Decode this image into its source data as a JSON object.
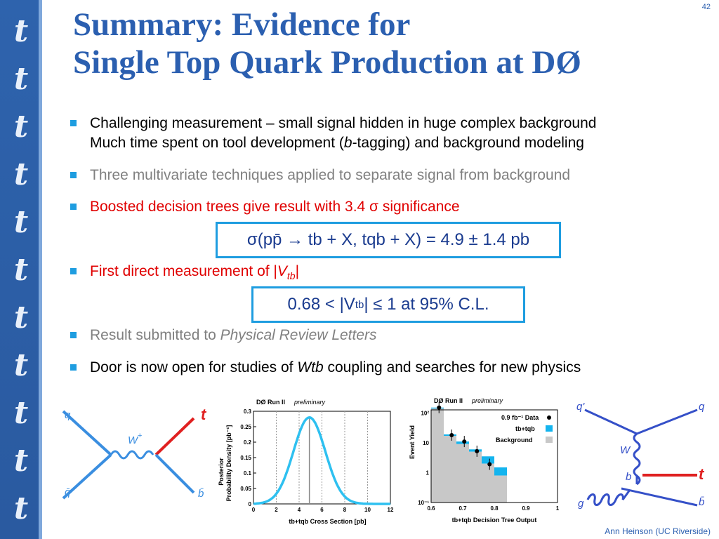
{
  "slide": {
    "page_number": "42",
    "title_line1": "Summary:   Evidence for",
    "title_line2": "Single Top Quark Production at DØ",
    "sidebar_letter": "t",
    "footer": "Ann Heinson   (UC Riverside)"
  },
  "bullets": {
    "b1_line1": "Challenging measurement – small signal hidden in huge complex background",
    "b1_line2_pre": "Much time spent on tool development (",
    "b1_line2_italic": "b",
    "b1_line2_post": "-tagging) and background modeling",
    "b2": "Three multivariate techniques applied to separate signal from background",
    "b3": "Boosted decision trees give result with 3.4 σ significance",
    "b4_pre": "First direct measurement of |",
    "b4_V": "V",
    "b4_sub": "tb",
    "b4_post": "|",
    "b5_pre": "Result submitted to ",
    "b5_italic": "Physical Review Letters",
    "b6_pre": "Door is now open for studies of ",
    "b6_italic": "Wtb",
    "b6_post": " coupling and searches for new physics"
  },
  "formulas": {
    "f1": "σ(pp̄ → tb + X, tqb + X)  =  4.9 ± 1.4 pb",
    "f2_pre": "0.68 < |V",
    "f2_sub": "tb",
    "f2_post": " | ≤ 1    at 95% C.L."
  },
  "feyn1": {
    "q": "q",
    "qbar": "q̄'",
    "w": "W",
    "wsup": "+",
    "t": "t",
    "b": "b̄"
  },
  "feyn2": {
    "qprime": "q'",
    "q": "q",
    "w": "W",
    "b": "b",
    "t": "t",
    "g": "g",
    "bbar": "b̄"
  },
  "chart_data": [
    {
      "type": "line",
      "header": "DØ Run II",
      "header_italic": "preliminary",
      "xlabel": "tb+tqb Cross Section  [pb]",
      "ylabel_line1": "Posterior",
      "ylabel_line2": "Probability Density  [pb⁻¹]",
      "xlim": [
        0,
        12
      ],
      "ylim": [
        0,
        0.3
      ],
      "x_ticks": [
        "0",
        "2",
        "4",
        "6",
        "8",
        "10",
        "12"
      ],
      "y_ticks": [
        "0",
        "0.05",
        "0.1",
        "0.15",
        "0.2",
        "0.25",
        "0.3"
      ],
      "peak_x": 4.9,
      "peak_y": 0.28,
      "sigma": 1.4,
      "color": "#2ec0f0"
    },
    {
      "type": "bar",
      "header": "DØ Run II",
      "header_italic": "preliminary",
      "xlabel": "tb+tqb Decision Tree Output",
      "ylabel": "Event Yield",
      "x_ticks": [
        "0.6",
        "0.7",
        "0.8",
        "0.9",
        "1"
      ],
      "y_ticks": [
        "10⁻¹",
        "1",
        "10",
        "10²"
      ],
      "xlim": [
        0.6,
        1.0
      ],
      "ylim_log10": [
        -1,
        2.1
      ],
      "legend": [
        "0.9 fb⁻¹ Data",
        "tb+tqb",
        "Background"
      ],
      "bin_edges": [
        0.6,
        0.64,
        0.68,
        0.72,
        0.76,
        0.8,
        0.84,
        0.88,
        0.92,
        0.96,
        1.0
      ],
      "background": [
        140,
        17,
        9,
        5,
        2,
        0.8,
        0.1,
        0,
        0,
        0
      ],
      "signal_top": [
        150,
        19,
        11,
        6,
        3.5,
        1.5,
        0.1,
        0,
        0,
        0
      ],
      "data_x": [
        0.625,
        0.665,
        0.705,
        0.745,
        0.785
      ],
      "data_y": [
        150,
        18,
        11,
        5.2,
        1.9
      ],
      "colors": {
        "background": "#c8c8c8",
        "signal": "#14b4ee",
        "data": "#000000"
      }
    }
  ]
}
